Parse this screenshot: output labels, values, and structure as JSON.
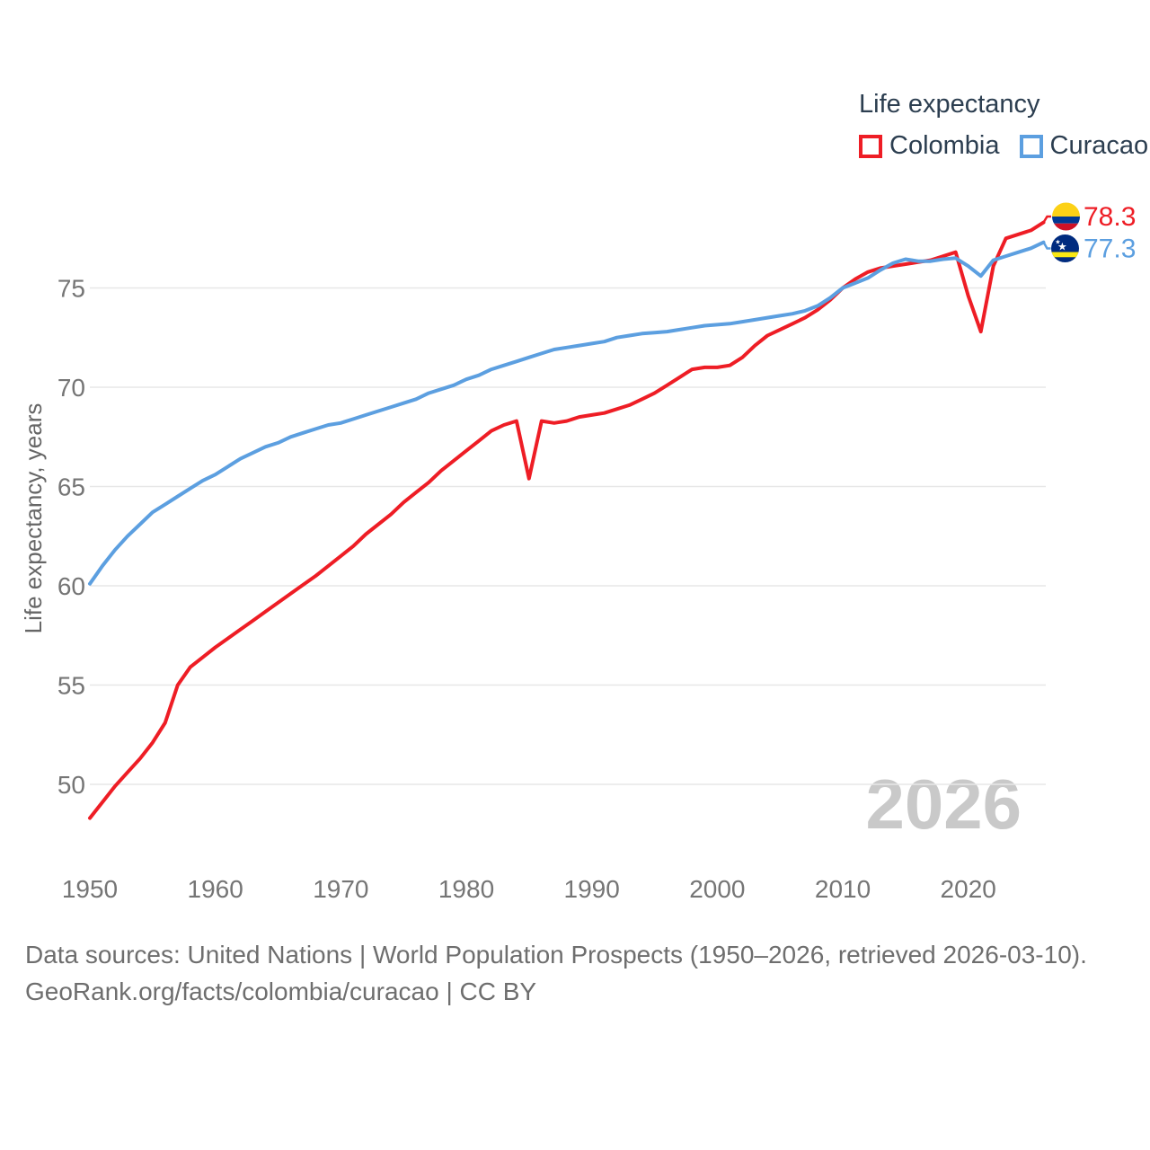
{
  "legend": {
    "title": "Life expectancy",
    "items": [
      {
        "label": "Colombia",
        "color": "#ee1d25"
      },
      {
        "label": "Curacao",
        "color": "#5c9fe0"
      }
    ]
  },
  "footer": {
    "line1": "Data sources: United Nations | World Population Prospects (1950–2026, retrieved 2026-03-10).",
    "line2": "GeoRank.org/facts/colombia/curacao | CC BY"
  },
  "colors": {
    "colombia_line": "#ee1d25",
    "curacao_line": "#5c9fe0",
    "axis_text": "#757575",
    "legend_text": "#2c3e50",
    "gridline": "#e7e7e7",
    "watermark": "#c9c9c9",
    "footer_text": "#6e6e6e",
    "flag_colombia": {
      "yellow": "#FCD116",
      "blue": "#003893",
      "red": "#CE1126"
    },
    "flag_curacao": {
      "blue": "#002B7F",
      "yellow": "#F9E814",
      "star": "#ffffff"
    }
  },
  "chart_data": {
    "type": "line",
    "title": "Life expectancy",
    "xlabel": "",
    "ylabel": "Life expectancy, years",
    "grid": "horizontal",
    "legend_position": "top-right",
    "watermark": "2026",
    "xlim": [
      1950,
      2026
    ],
    "ylim": [
      47.5,
      79.5
    ],
    "xticks": [
      1950,
      1960,
      1970,
      1980,
      1990,
      2000,
      2010,
      2020
    ],
    "yticks": [
      50,
      55,
      60,
      65,
      70,
      75
    ],
    "x": [
      1950,
      1951,
      1952,
      1953,
      1954,
      1955,
      1956,
      1957,
      1958,
      1959,
      1960,
      1961,
      1962,
      1963,
      1964,
      1965,
      1966,
      1967,
      1968,
      1969,
      1970,
      1971,
      1972,
      1973,
      1974,
      1975,
      1976,
      1977,
      1978,
      1979,
      1980,
      1981,
      1982,
      1983,
      1984,
      1985,
      1986,
      1987,
      1988,
      1989,
      1990,
      1991,
      1992,
      1993,
      1994,
      1995,
      1996,
      1997,
      1998,
      1999,
      2000,
      2001,
      2002,
      2003,
      2004,
      2005,
      2006,
      2007,
      2008,
      2009,
      2010,
      2011,
      2012,
      2013,
      2014,
      2015,
      2016,
      2017,
      2018,
      2019,
      2020,
      2021,
      2022,
      2023,
      2024,
      2025,
      2026
    ],
    "series": [
      {
        "name": "Colombia",
        "color": "#ee1d25",
        "values": [
          48.3,
          49.1,
          49.9,
          50.6,
          51.3,
          52.1,
          53.1,
          55.0,
          55.9,
          56.4,
          56.9,
          57.35,
          57.8,
          58.25,
          58.7,
          59.15,
          59.6,
          60.05,
          60.5,
          61.0,
          61.5,
          62.0,
          62.6,
          63.1,
          63.6,
          64.2,
          64.7,
          65.2,
          65.8,
          66.3,
          66.8,
          67.3,
          67.8,
          68.1,
          68.3,
          65.4,
          68.3,
          68.2,
          68.3,
          68.5,
          68.6,
          68.7,
          68.9,
          69.1,
          69.4,
          69.7,
          70.1,
          70.5,
          70.9,
          71.0,
          71.0,
          71.1,
          71.5,
          72.1,
          72.6,
          72.9,
          73.2,
          73.5,
          73.9,
          74.4,
          75.0,
          75.45,
          75.8,
          76.0,
          76.1,
          76.2,
          76.3,
          76.4,
          76.6,
          76.8,
          74.6,
          72.8,
          76.1,
          77.5,
          77.7,
          77.9,
          78.3
        ]
      },
      {
        "name": "Curacao",
        "color": "#5c9fe0",
        "values": [
          60.1,
          61.0,
          61.8,
          62.5,
          63.1,
          63.7,
          64.1,
          64.5,
          64.9,
          65.3,
          65.6,
          66.0,
          66.4,
          66.7,
          67.0,
          67.2,
          67.5,
          67.7,
          67.9,
          68.1,
          68.2,
          68.4,
          68.6,
          68.8,
          69.0,
          69.2,
          69.4,
          69.7,
          69.9,
          70.1,
          70.4,
          70.6,
          70.9,
          71.1,
          71.3,
          71.5,
          71.7,
          71.9,
          72.0,
          72.1,
          72.2,
          72.3,
          72.5,
          72.6,
          72.7,
          72.75,
          72.8,
          72.9,
          73.0,
          73.1,
          73.15,
          73.2,
          73.3,
          73.4,
          73.5,
          73.6,
          73.7,
          73.85,
          74.1,
          74.5,
          75.0,
          75.25,
          75.5,
          75.9,
          76.25,
          76.45,
          76.35,
          76.35,
          76.45,
          76.5,
          76.1,
          75.6,
          76.4,
          76.6,
          76.8,
          77.0,
          77.3
        ]
      }
    ],
    "end_labels": [
      {
        "series": "Colombia",
        "text": "78.3",
        "flag": "colombia"
      },
      {
        "series": "Curacao",
        "text": "77.3",
        "flag": "curacao"
      }
    ]
  }
}
